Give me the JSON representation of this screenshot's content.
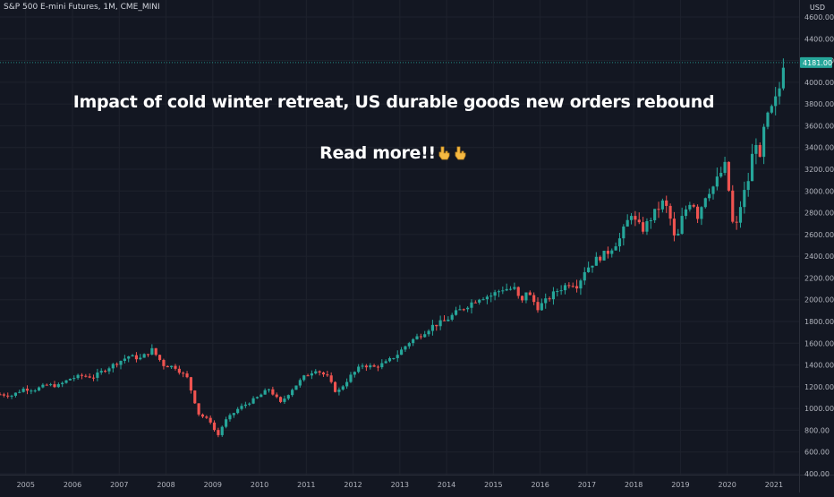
{
  "header": {
    "symbol_title": "S&P 500 E-mini Futures, 1M, CME_MINI",
    "currency": "USD"
  },
  "overlay": {
    "headline": "Impact of cold winter retreat, US durable goods new orders rebound",
    "cta": "Read more!!",
    "cta_icons": [
      "pointing-down-hand-icon",
      "pointing-down-hand-icon"
    ]
  },
  "colors": {
    "background": "#131722",
    "grid": "#1e222d",
    "up": "#26a69a",
    "down": "#ef5350",
    "text": "#b2b5be",
    "price_line": "#26a69a"
  },
  "chart_data": {
    "type": "candlestick",
    "interval": "1M",
    "x_axis": {
      "ticks": [
        "2005",
        "2006",
        "2007",
        "2008",
        "2009",
        "2010",
        "2011",
        "2012",
        "2013",
        "2014",
        "2015",
        "2016",
        "2017",
        "2018",
        "2019",
        "2020",
        "2021"
      ]
    },
    "y_axis": {
      "ticks": [
        400,
        600,
        800,
        1000,
        1200,
        1400,
        1600,
        1800,
        2000,
        2200,
        2400,
        2600,
        2800,
        3000,
        3200,
        3400,
        3600,
        3800,
        4000,
        4200,
        4400,
        4600
      ],
      "range": [
        400,
        4600
      ]
    },
    "last_price": "4181.00",
    "series": [
      {
        "name": "S&P 500 E-mini Futures",
        "anchors": [
          [
            2004.5,
            1130
          ],
          [
            2004.75,
            1120
          ],
          [
            2005.0,
            1180
          ],
          [
            2005.25,
            1175
          ],
          [
            2005.5,
            1215
          ],
          [
            2005.75,
            1210
          ],
          [
            2006.0,
            1275
          ],
          [
            2006.25,
            1300
          ],
          [
            2006.5,
            1290
          ],
          [
            2006.75,
            1360
          ],
          [
            2007.0,
            1420
          ],
          [
            2007.25,
            1480
          ],
          [
            2007.5,
            1460
          ],
          [
            2007.75,
            1540
          ],
          [
            2008.0,
            1400
          ],
          [
            2008.25,
            1380
          ],
          [
            2008.5,
            1280
          ],
          [
            2008.75,
            950
          ],
          [
            2009.0,
            880
          ],
          [
            2009.15,
            740
          ],
          [
            2009.3,
            880
          ],
          [
            2009.6,
            1000
          ],
          [
            2010.0,
            1100
          ],
          [
            2010.25,
            1180
          ],
          [
            2010.5,
            1050
          ],
          [
            2010.75,
            1180
          ],
          [
            2011.0,
            1290
          ],
          [
            2011.25,
            1360
          ],
          [
            2011.5,
            1290
          ],
          [
            2011.7,
            1140
          ],
          [
            2012.0,
            1300
          ],
          [
            2012.25,
            1400
          ],
          [
            2012.5,
            1380
          ],
          [
            2012.75,
            1420
          ],
          [
            2013.0,
            1500
          ],
          [
            2013.25,
            1610
          ],
          [
            2013.5,
            1680
          ],
          [
            2013.75,
            1760
          ],
          [
            2014.0,
            1800
          ],
          [
            2014.25,
            1880
          ],
          [
            2014.5,
            1950
          ],
          [
            2014.75,
            2020
          ],
          [
            2015.0,
            2040
          ],
          [
            2015.25,
            2100
          ],
          [
            2015.5,
            2100
          ],
          [
            2015.65,
            1960
          ],
          [
            2015.75,
            2080
          ],
          [
            2016.0,
            1930
          ],
          [
            2016.15,
            1980
          ],
          [
            2016.4,
            2080
          ],
          [
            2016.7,
            2160
          ],
          [
            2016.85,
            2130
          ],
          [
            2017.0,
            2270
          ],
          [
            2017.25,
            2370
          ],
          [
            2017.5,
            2440
          ],
          [
            2017.75,
            2560
          ],
          [
            2018.0,
            2800
          ],
          [
            2018.1,
            2700
          ],
          [
            2018.25,
            2650
          ],
          [
            2018.5,
            2800
          ],
          [
            2018.7,
            2910
          ],
          [
            2018.85,
            2720
          ],
          [
            2018.95,
            2500
          ],
          [
            2019.1,
            2780
          ],
          [
            2019.3,
            2940
          ],
          [
            2019.4,
            2750
          ],
          [
            2019.6,
            2980
          ],
          [
            2019.75,
            3040
          ],
          [
            2020.0,
            3230
          ],
          [
            2020.1,
            2960
          ],
          [
            2020.2,
            2580
          ],
          [
            2020.35,
            2900
          ],
          [
            2020.5,
            3100
          ],
          [
            2020.65,
            3500
          ],
          [
            2020.75,
            3270
          ],
          [
            2020.85,
            3620
          ],
          [
            2021.0,
            3750
          ],
          [
            2021.15,
            3900
          ],
          [
            2021.25,
            4181
          ]
        ]
      }
    ]
  }
}
